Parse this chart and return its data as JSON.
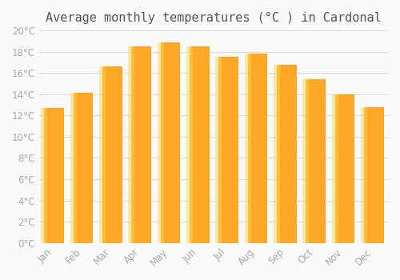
{
  "title": "Average monthly temperatures (°C ) in Cardonal",
  "months": [
    "Jan",
    "Feb",
    "Mar",
    "Apr",
    "May",
    "Jun",
    "Jul",
    "Aug",
    "Sep",
    "Oct",
    "Nov",
    "Dec"
  ],
  "temperatures": [
    12.7,
    14.1,
    16.6,
    18.5,
    18.9,
    18.5,
    17.5,
    17.8,
    16.8,
    15.4,
    14.0,
    12.8
  ],
  "bar_color_face": "#FFA726",
  "bar_color_edge": "#FB8C00",
  "ylim": [
    0,
    20
  ],
  "ytick_step": 2,
  "background_color": "#FAFAFA",
  "grid_color": "#DDDDDD",
  "title_fontsize": 11,
  "tick_fontsize": 8.5,
  "tick_label_color": "#AAAAAA",
  "title_color": "#555555"
}
